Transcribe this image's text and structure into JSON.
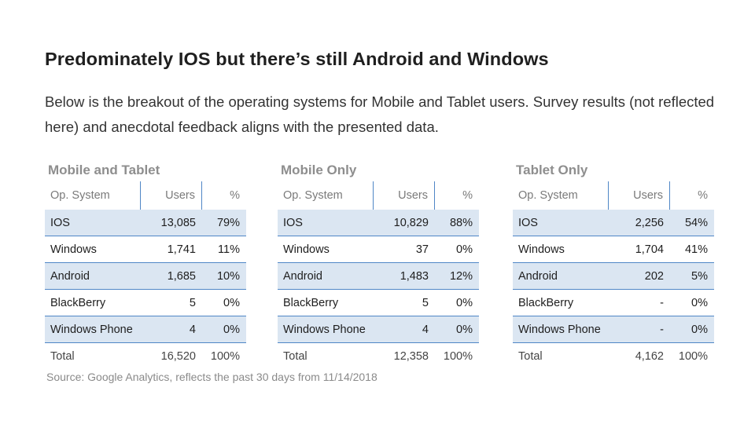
{
  "title": "Predominately IOS but there’s still Android and Windows",
  "description": "Below is the breakout of the operating systems for Mobile and Tablet users. Survey results (not reflected here) and anecdotal feedback aligns with the presented data.",
  "headers": {
    "os": "Op. System",
    "users": "Users",
    "pct": "%"
  },
  "tables": [
    {
      "title": "Mobile and Tablet",
      "rows": [
        {
          "os": "IOS",
          "users": "13,085",
          "pct": "79%"
        },
        {
          "os": "Windows",
          "users": "1,741",
          "pct": "11%"
        },
        {
          "os": "Android",
          "users": "1,685",
          "pct": "10%"
        },
        {
          "os": "BlackBerry",
          "users": "5",
          "pct": "0%"
        },
        {
          "os": "Windows Phone",
          "users": "4",
          "pct": "0%"
        }
      ],
      "total": {
        "os": "Total",
        "users": "16,520",
        "pct": "100%"
      }
    },
    {
      "title": "Mobile Only",
      "rows": [
        {
          "os": "IOS",
          "users": "10,829",
          "pct": "88%"
        },
        {
          "os": "Windows",
          "users": "37",
          "pct": "0%"
        },
        {
          "os": "Android",
          "users": "1,483",
          "pct": "12%"
        },
        {
          "os": "BlackBerry",
          "users": "5",
          "pct": "0%"
        },
        {
          "os": "Windows Phone",
          "users": "4",
          "pct": "0%"
        }
      ],
      "total": {
        "os": "Total",
        "users": "12,358",
        "pct": "100%"
      }
    },
    {
      "title": "Tablet Only",
      "rows": [
        {
          "os": "IOS",
          "users": "2,256",
          "pct": "54%"
        },
        {
          "os": "Windows",
          "users": "1,704",
          "pct": "41%"
        },
        {
          "os": "Android",
          "users": "202",
          "pct": "5%"
        },
        {
          "os": "BlackBerry",
          "users": "-",
          "pct": "0%"
        },
        {
          "os": "Windows Phone",
          "users": "-",
          "pct": "0%"
        }
      ],
      "total": {
        "os": "Total",
        "users": "4,162",
        "pct": "100%"
      }
    }
  ],
  "source": "Source: Google Analytics, reflects the past 30 days from 11/14/2018"
}
